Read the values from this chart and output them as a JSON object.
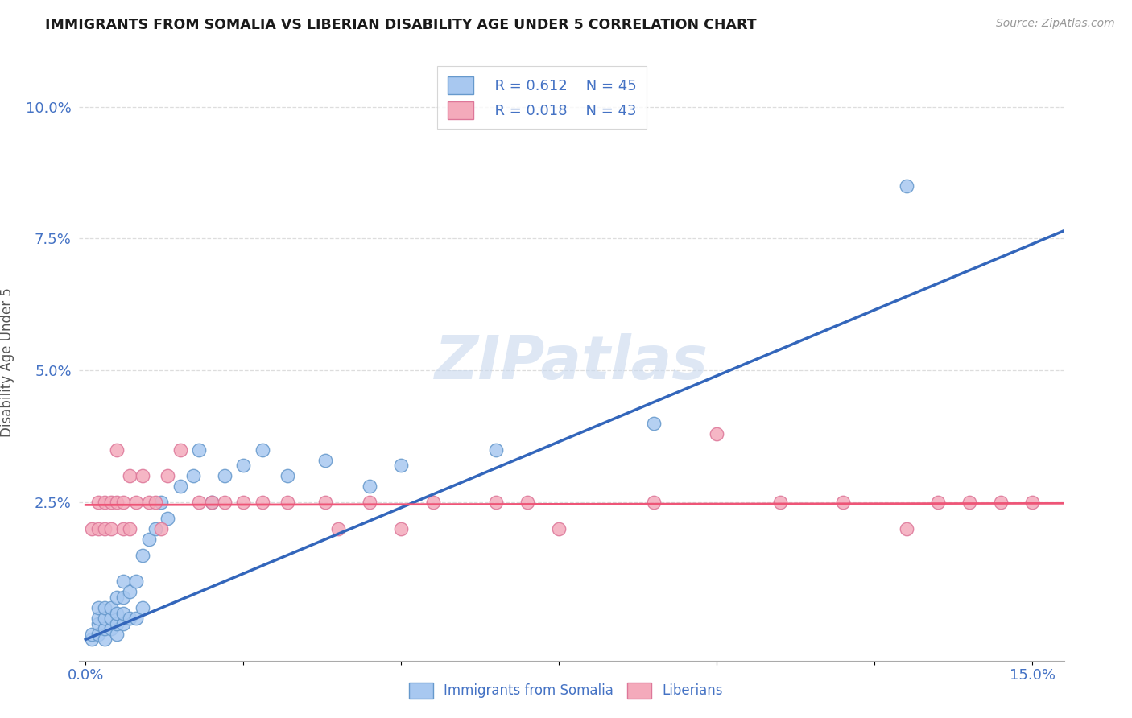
{
  "title": "IMMIGRANTS FROM SOMALIA VS LIBERIAN DISABILITY AGE UNDER 5 CORRELATION CHART",
  "source": "Source: ZipAtlas.com",
  "ylabel": "Disability Age Under 5",
  "xlim": [
    -0.001,
    0.155
  ],
  "ylim": [
    -0.005,
    0.108
  ],
  "yticks": [
    0.025,
    0.05,
    0.075,
    0.1
  ],
  "ytick_labels": [
    "2.5%",
    "5.0%",
    "7.5%",
    "10.0%"
  ],
  "xtick_labels_show": [
    "0.0%",
    "15.0%"
  ],
  "xtick_positions_show": [
    0.0,
    0.15
  ],
  "somalia_color": "#A8C8F0",
  "somalia_edge": "#6699CC",
  "liberia_color": "#F4AABB",
  "liberia_edge": "#DD7799",
  "trendline_somalia_color": "#3366BB",
  "trendline_liberia_color": "#EE5577",
  "legend_R_somalia": "R = 0.612",
  "legend_N_somalia": "N = 45",
  "legend_R_liberia": "R = 0.018",
  "legend_N_liberia": "N = 43",
  "legend_label_somalia": "Immigrants from Somalia",
  "legend_label_liberia": "Liberians",
  "watermark": "ZIPatlas",
  "somalia_x": [
    0.001,
    0.001,
    0.002,
    0.002,
    0.002,
    0.002,
    0.003,
    0.003,
    0.003,
    0.003,
    0.004,
    0.004,
    0.004,
    0.005,
    0.005,
    0.005,
    0.005,
    0.006,
    0.006,
    0.006,
    0.006,
    0.007,
    0.007,
    0.008,
    0.008,
    0.009,
    0.009,
    0.01,
    0.011,
    0.012,
    0.013,
    0.015,
    0.017,
    0.018,
    0.02,
    0.022,
    0.025,
    0.028,
    0.032,
    0.038,
    0.045,
    0.05,
    0.065,
    0.09,
    0.13
  ],
  "somalia_y": [
    -0.001,
    0.0,
    0.0,
    0.002,
    0.003,
    0.005,
    -0.001,
    0.001,
    0.003,
    0.005,
    0.001,
    0.003,
    0.005,
    0.0,
    0.002,
    0.004,
    0.007,
    0.002,
    0.004,
    0.007,
    0.01,
    0.003,
    0.008,
    0.003,
    0.01,
    0.005,
    0.015,
    0.018,
    0.02,
    0.025,
    0.022,
    0.028,
    0.03,
    0.035,
    0.025,
    0.03,
    0.032,
    0.035,
    0.03,
    0.033,
    0.028,
    0.032,
    0.035,
    0.04,
    0.085
  ],
  "liberia_x": [
    0.001,
    0.002,
    0.002,
    0.003,
    0.003,
    0.004,
    0.004,
    0.005,
    0.005,
    0.006,
    0.006,
    0.007,
    0.007,
    0.008,
    0.009,
    0.01,
    0.011,
    0.012,
    0.013,
    0.015,
    0.018,
    0.02,
    0.022,
    0.025,
    0.028,
    0.032,
    0.038,
    0.04,
    0.045,
    0.05,
    0.055,
    0.065,
    0.07,
    0.075,
    0.09,
    0.1,
    0.11,
    0.12,
    0.13,
    0.135,
    0.14,
    0.145,
    0.15
  ],
  "liberia_y": [
    0.02,
    0.02,
    0.025,
    0.02,
    0.025,
    0.02,
    0.025,
    0.025,
    0.035,
    0.02,
    0.025,
    0.02,
    0.03,
    0.025,
    0.03,
    0.025,
    0.025,
    0.02,
    0.03,
    0.035,
    0.025,
    0.025,
    0.025,
    0.025,
    0.025,
    0.025,
    0.025,
    0.02,
    0.025,
    0.02,
    0.025,
    0.025,
    0.025,
    0.02,
    0.025,
    0.038,
    0.025,
    0.025,
    0.02,
    0.025,
    0.025,
    0.025,
    0.025
  ]
}
